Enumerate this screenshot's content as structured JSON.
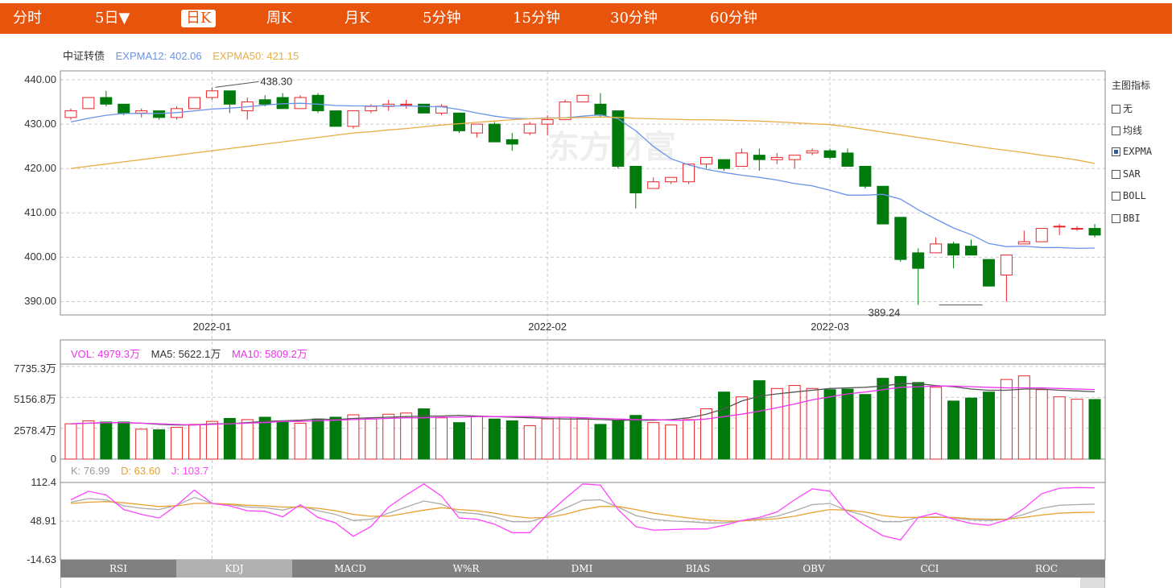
{
  "tabs": [
    {
      "label": "分时",
      "active": false
    },
    {
      "label": "5日▼",
      "active": false
    },
    {
      "label": "日K",
      "active": true
    },
    {
      "label": "周K",
      "active": false
    },
    {
      "label": "月K",
      "active": false
    },
    {
      "label": "5分钟",
      "active": false
    },
    {
      "label": "15分钟",
      "active": false
    },
    {
      "label": "30分钟",
      "active": false
    },
    {
      "label": "60分钟",
      "active": false
    }
  ],
  "main_legend": {
    "name": "中证转债",
    "ema12": "EXPMA12: 402.06",
    "ema50": "EXPMA50: 421.15"
  },
  "vol_legend": {
    "vol": "VOL: 4979.3万",
    "ma5": "MA5: 5622.1万",
    "ma10": "MA10: 5809.2万"
  },
  "kdj_legend": {
    "k": "K: 76.99",
    "d": "D: 63.60",
    "j": "J: 103.7"
  },
  "watermark": "东方财富",
  "side_panel": {
    "title": "主图指标",
    "items": [
      {
        "label": "无",
        "checked": false
      },
      {
        "label": "均线",
        "checked": false
      },
      {
        "label": "EXPMA",
        "checked": true
      },
      {
        "label": "SAR",
        "checked": false
      },
      {
        "label": "BOLL",
        "checked": false
      },
      {
        "label": "BBI",
        "checked": false
      }
    ]
  },
  "indicator_tabs": [
    {
      "label": "RSI",
      "active": false
    },
    {
      "label": "KDJ",
      "active": true
    },
    {
      "label": "MACD",
      "active": false
    },
    {
      "label": "W%R",
      "active": false
    },
    {
      "label": "DMI",
      "active": false
    },
    {
      "label": "BIAS",
      "active": false
    },
    {
      "label": "OBV",
      "active": false
    },
    {
      "label": "CCI",
      "active": false
    },
    {
      "label": "ROC",
      "active": false
    }
  ],
  "colors": {
    "up": "#e8242a",
    "down": "#007a0c",
    "ema12": "#6a93ea",
    "ema50": "#e8ad45",
    "ma5": "#555555",
    "ma10": "#ee33ee",
    "k": "#aaaaaa",
    "d": "#e8a030",
    "j": "#ff44ff"
  },
  "chart_data": [
    {
      "type": "candlestick",
      "title": "中证转债",
      "y_ticks": [
        "440.00",
        "430.00",
        "420.00",
        "410.00",
        "400.00",
        "390.00"
      ],
      "ylim": [
        387,
        442
      ],
      "x_ticks": [
        {
          "index": 8,
          "label": "2022-01"
        },
        {
          "index": 27,
          "label": "2022-02"
        },
        {
          "index": 43,
          "label": "2022-03"
        }
      ],
      "annotations": [
        {
          "label": "438.30",
          "index": 8
        },
        {
          "label": "389.24",
          "index": 49
        }
      ],
      "ohlc": [
        [
          431.5,
          433.5,
          431,
          433
        ],
        [
          433.5,
          436,
          433.5,
          436
        ],
        [
          436,
          437.5,
          434,
          434.5
        ],
        [
          434.5,
          434.5,
          432,
          432.5
        ],
        [
          432.5,
          433.5,
          431.5,
          433
        ],
        [
          433,
          433,
          431,
          431.5
        ],
        [
          431.5,
          434,
          431,
          433.5
        ],
        [
          433.5,
          436,
          433.5,
          436
        ],
        [
          436,
          438.3,
          435.5,
          437.5
        ],
        [
          437.5,
          437.5,
          432.5,
          434.5
        ],
        [
          433,
          436,
          431,
          435
        ],
        [
          435.5,
          436.5,
          434,
          434.5
        ],
        [
          436,
          437,
          433.5,
          433.5
        ],
        [
          433.5,
          436.5,
          433.5,
          436
        ],
        [
          436.5,
          437,
          432.5,
          433
        ],
        [
          433,
          433,
          429.5,
          429.5
        ],
        [
          429.5,
          433,
          429,
          433
        ],
        [
          433,
          434.5,
          432.5,
          434
        ],
        [
          434,
          435.5,
          433,
          434.5
        ],
        [
          434.5,
          435.5,
          433.5,
          434.5
        ],
        [
          434.5,
          434.5,
          432.5,
          432.5
        ],
        [
          432.5,
          434.5,
          432,
          434
        ],
        [
          432.5,
          432.5,
          428,
          428.5
        ],
        [
          428,
          430,
          427,
          430
        ],
        [
          430,
          430.5,
          426,
          426
        ],
        [
          426.5,
          428,
          424,
          425.5
        ],
        [
          428,
          430.5,
          427.5,
          430
        ],
        [
          430,
          432,
          427.5,
          431
        ],
        [
          431,
          435.5,
          431,
          435
        ],
        [
          435,
          436.5,
          435,
          436.5
        ],
        [
          434.5,
          437,
          431.5,
          432
        ],
        [
          433,
          433,
          420,
          420.5
        ],
        [
          420.5,
          420.5,
          411,
          414.5
        ],
        [
          415.5,
          418,
          415.5,
          417
        ],
        [
          417,
          418,
          416.5,
          418
        ],
        [
          417,
          421,
          416.5,
          421
        ],
        [
          421,
          422.5,
          420,
          422.5
        ],
        [
          422,
          422,
          419.5,
          420
        ],
        [
          420.5,
          424.5,
          420.5,
          423.5
        ],
        [
          423,
          424.5,
          419.5,
          422
        ],
        [
          422,
          423.5,
          421,
          422.5
        ],
        [
          422,
          423,
          420,
          423
        ],
        [
          423.5,
          424.5,
          423,
          424
        ],
        [
          424,
          424.5,
          422,
          422.5
        ],
        [
          423.5,
          424.5,
          420.5,
          420.5
        ],
        [
          420.5,
          420.5,
          415.5,
          416
        ],
        [
          416,
          416,
          407.5,
          407.5
        ],
        [
          409,
          409,
          399,
          399.5
        ],
        [
          401,
          402,
          389.24,
          397.5
        ],
        [
          401,
          404.5,
          401,
          403
        ],
        [
          403,
          403.5,
          397.5,
          400.5
        ],
        [
          402.5,
          404,
          400.5,
          400.5
        ],
        [
          399.5,
          399.5,
          393.5,
          393.5
        ],
        [
          396,
          400.5,
          390,
          400.5
        ],
        [
          403,
          406,
          403,
          403.5
        ],
        [
          403.5,
          406.5,
          403.5,
          406.5
        ],
        [
          407,
          407.5,
          405,
          407
        ],
        [
          406.5,
          407,
          406,
          406.5
        ],
        [
          406.5,
          407.5,
          404.5,
          405
        ]
      ],
      "ema12": [
        430.5,
        431.3,
        432,
        432.4,
        432.4,
        432.4,
        432.6,
        433,
        433.4,
        433.6,
        433.9,
        434.3,
        434.6,
        434.7,
        434.5,
        434.2,
        434.1,
        434.1,
        434.1,
        434.1,
        434,
        433.9,
        433.3,
        432.5,
        431.8,
        431.3,
        431.2,
        431.4,
        431.4,
        431.8,
        432.1,
        431.2,
        428.5,
        425,
        422.2,
        420.8,
        419.8,
        419.1,
        418.5,
        418,
        417.4,
        416.6,
        416.1,
        415.1,
        414,
        414,
        414.2,
        413.1,
        410.7,
        408.6,
        406.6,
        405.1,
        403.1,
        402.4,
        402.5,
        402.2,
        402.2,
        402,
        402.06
      ],
      "ema50": [
        420,
        420.5,
        421,
        421.5,
        422,
        422.5,
        423,
        423.5,
        424,
        424.5,
        425,
        425.5,
        426,
        426.5,
        427,
        427.5,
        428,
        428.3,
        428.7,
        429,
        429.4,
        429.8,
        430.1,
        430.4,
        430.7,
        431,
        431.2,
        431.3,
        431.4,
        431.5,
        431.6,
        431.5,
        431.3,
        431.2,
        431.1,
        431,
        431,
        430.9,
        430.8,
        430.7,
        430.5,
        430.3,
        430.1,
        429.9,
        429.4,
        428.8,
        428.2,
        427.6,
        427,
        426.4,
        425.8,
        425.2,
        424.6,
        424.1,
        423.6,
        423,
        422.5,
        421.9,
        421.15
      ]
    },
    {
      "type": "bar",
      "title": "VOL",
      "y_ticks": [
        "7735.3万",
        "5156.8万",
        "2578.4万",
        "0"
      ],
      "ylim": [
        0,
        7735.3
      ],
      "volume": [
        2950,
        3200,
        3100,
        3100,
        2500,
        2450,
        2650,
        2900,
        3150,
        3400,
        3300,
        3500,
        3150,
        3000,
        3350,
        3500,
        3700,
        3350,
        3750,
        3850,
        4200,
        3450,
        3050,
        3600,
        3350,
        3200,
        2800,
        3350,
        3500,
        3450,
        2900,
        3250,
        3650,
        3050,
        2850,
        3300,
        4200,
        5600,
        5200,
        6550,
        5900,
        6150,
        5900,
        5800,
        5850,
        5400,
        6750,
        6900,
        6400,
        6000,
        4850,
        5100,
        5600,
        6650,
        6950,
        5800,
        5200,
        5000,
        4979.3
      ],
      "ma5": [
        2950,
        3000,
        3050,
        3050,
        3000,
        2900,
        2850,
        2850,
        2950,
        2950,
        3050,
        3150,
        3200,
        3250,
        3350,
        3300,
        3400,
        3450,
        3500,
        3550,
        3600,
        3600,
        3650,
        3600,
        3550,
        3500,
        3450,
        3400,
        3350,
        3350,
        3300,
        3250,
        3250,
        3250,
        3300,
        3450,
        3750,
        4200,
        4850,
        5250,
        5450,
        5600,
        5750,
        5900,
        5950,
        6000,
        6100,
        6300,
        6300,
        6150,
        6050,
        5850,
        5750,
        5750,
        5850,
        5850,
        5750,
        5700,
        5622.1
      ],
      "ma10": [
        2950,
        3000,
        3050,
        3050,
        3000,
        2950,
        2900,
        2850,
        2900,
        2950,
        3000,
        3050,
        3150,
        3150,
        3200,
        3250,
        3300,
        3350,
        3400,
        3450,
        3450,
        3500,
        3500,
        3550,
        3550,
        3550,
        3550,
        3500,
        3500,
        3450,
        3400,
        3350,
        3300,
        3300,
        3250,
        3250,
        3350,
        3550,
        3750,
        4000,
        4300,
        4600,
        4950,
        5200,
        5450,
        5600,
        5800,
        6000,
        6050,
        6100,
        6100,
        6050,
        6000,
        5950,
        5950,
        5950,
        5900,
        5850,
        5809.2
      ]
    },
    {
      "type": "line",
      "title": "KDJ",
      "y_ticks": [
        "112.4",
        "48.91",
        "-14.63"
      ],
      "ylim": [
        -14.63,
        112.4
      ],
      "k": [
        80,
        86,
        84,
        74,
        70,
        68,
        75,
        88,
        78,
        76,
        72,
        71,
        67,
        74,
        66,
        60,
        50,
        52,
        62,
        72,
        82,
        77,
        63,
        61,
        56,
        48,
        48,
        57,
        70,
        83,
        84,
        72,
        58,
        52,
        49,
        48,
        46,
        46,
        50,
        53,
        57,
        66,
        76,
        78,
        66,
        58,
        48,
        48,
        55,
        56,
        54,
        51,
        50,
        52,
        60,
        70,
        75,
        76,
        76.99
      ],
      "d": [
        78,
        80,
        81,
        79,
        76,
        73,
        74,
        78,
        78,
        77,
        75,
        74,
        72,
        72,
        70,
        66,
        60,
        57,
        57,
        62,
        67,
        71,
        68,
        66,
        62,
        57,
        54,
        55,
        60,
        68,
        73,
        73,
        68,
        62,
        58,
        54,
        51,
        49,
        49,
        51,
        53,
        57,
        63,
        68,
        67,
        64,
        58,
        55,
        55,
        55,
        55,
        53,
        52,
        52,
        55,
        59,
        62,
        63,
        63.6
      ],
      "j": [
        84,
        98,
        92,
        68,
        60,
        54,
        75,
        100,
        78,
        74,
        66,
        65,
        56,
        76,
        55,
        46,
        24,
        40,
        72,
        92,
        110,
        90,
        54,
        52,
        44,
        30,
        30,
        60,
        86,
        110,
        108,
        68,
        40,
        34,
        35,
        36,
        36,
        42,
        50,
        55,
        64,
        84,
        102,
        98,
        62,
        42,
        25,
        18,
        55,
        62,
        52,
        45,
        42,
        51,
        70,
        94,
        103,
        104,
        103.7
      ]
    }
  ]
}
